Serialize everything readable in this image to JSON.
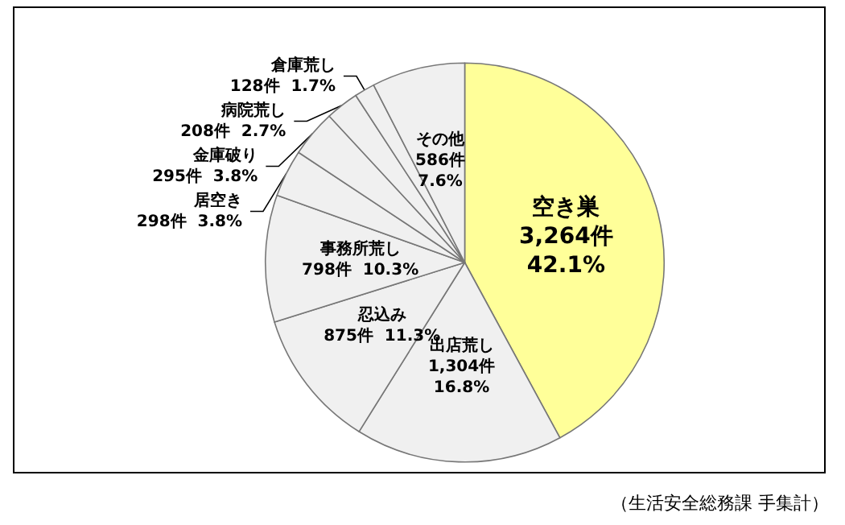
{
  "chart_data": {
    "type": "pie",
    "categories": [
      "空き巣",
      "出店荒し",
      "忍込み",
      "事務所荒し",
      "居空き",
      "金庫破り",
      "病院荒し",
      "倉庫荒し",
      "その他"
    ],
    "values": [
      3264,
      1304,
      875,
      798,
      298,
      295,
      208,
      128,
      586
    ],
    "value_labels": [
      "3,264件 42.1%",
      "1,304件 16.8%",
      "875件 11.3%",
      "798件 10.3%",
      "298件 3.8%",
      "295件 3.8%",
      "208件 2.7%",
      "128件 1.7%",
      "586件 7.6%"
    ],
    "colors": [
      "#ffff99",
      "#f0f0f0",
      "#f0f0f0",
      "#f0f0f0",
      "#f0f0f0",
      "#f0f0f0",
      "#f0f0f0",
      "#f0f0f0",
      "#f0f0f0"
    ],
    "annotations": [
      "（生活安全総務課 手集計）"
    ],
    "legend": false
  }
}
